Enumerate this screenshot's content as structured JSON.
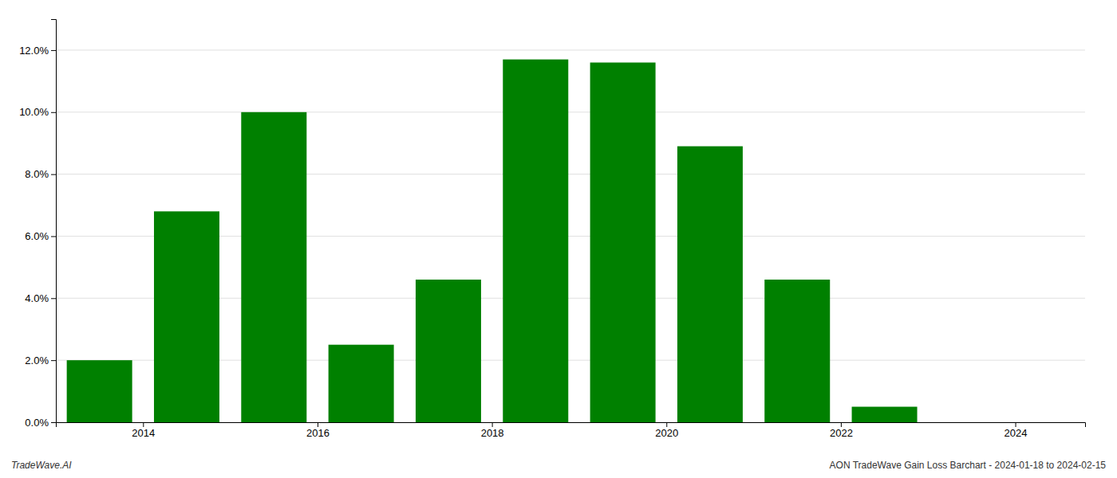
{
  "chart_data": {
    "type": "bar",
    "x": [
      2013.5,
      2014.5,
      2015.5,
      2016.5,
      2017.5,
      2018.5,
      2019.5,
      2020.5,
      2021.5,
      2022.5,
      2023.5
    ],
    "values": [
      0.02,
      0.068,
      0.1,
      0.025,
      0.046,
      0.117,
      0.116,
      0.089,
      0.046,
      0.005,
      0.0
    ],
    "color": "#008000",
    "xlim": [
      2013.0,
      2024.8
    ],
    "xticks": [
      2014,
      2016,
      2018,
      2020,
      2022,
      2024
    ],
    "ylim": [
      0,
      0.13
    ],
    "yticks": [
      {
        "value": 0.0,
        "label": "0.0%"
      },
      {
        "value": 0.02,
        "label": "2.0%"
      },
      {
        "value": 0.04,
        "label": "4.0%"
      },
      {
        "value": 0.06,
        "label": "6.0%"
      },
      {
        "value": 0.08,
        "label": "8.0%"
      },
      {
        "value": 0.1,
        "label": "10.0%"
      },
      {
        "value": 0.12,
        "label": "12.0%"
      }
    ],
    "grid": true,
    "annotations": [
      "TradeWave.AI",
      "AON TradeWave Gain Loss Barchart - 2024-01-18 to 2024-02-15"
    ]
  }
}
